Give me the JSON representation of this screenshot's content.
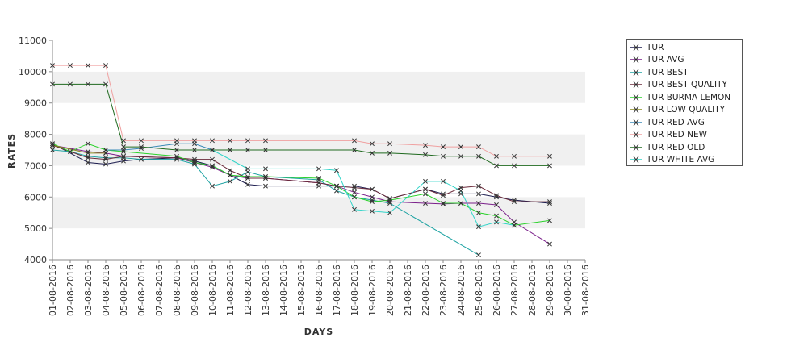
{
  "chart_data": {
    "type": "line",
    "xlabel": "DAYS",
    "ylabel": "RATES",
    "ylim": [
      4000,
      11000
    ],
    "yticks": [
      4000,
      5000,
      6000,
      7000,
      8000,
      9000,
      10000,
      11000
    ],
    "x": [
      "01-08-2016",
      "02-08-2016",
      "03-08-2016",
      "04-08-2016",
      "05-08-2016",
      "06-08-2016",
      "07-08-2016",
      "08-08-2016",
      "09-08-2016",
      "10-08-2016",
      "11-08-2016",
      "12-08-2016",
      "13-08-2016",
      "14-08-2016",
      "15-08-2016",
      "16-08-2016",
      "17-08-2016",
      "18-08-2016",
      "19-08-2016",
      "20-08-2016",
      "21-08-2016",
      "22-08-2016",
      "23-08-2016",
      "24-08-2016",
      "25-08-2016",
      "26-08-2016",
      "27-08-2016",
      "28-08-2016",
      "29-08-2016",
      "30-08-2016",
      "31-08-2016"
    ],
    "grid": "horizontal alternating bands",
    "legend_position": "right",
    "series": [
      {
        "name": "TUR",
        "color": "#1a1a4d",
        "points": [
          [
            "01-08-2016",
            7700
          ],
          [
            "03-08-2016",
            7100
          ],
          [
            "04-08-2016",
            7050
          ],
          [
            "05-08-2016",
            7150
          ],
          [
            "06-08-2016",
            7200
          ],
          [
            "08-08-2016",
            7250
          ],
          [
            "09-08-2016",
            7150
          ],
          [
            "10-08-2016",
            7000
          ],
          [
            "11-08-2016",
            6700
          ],
          [
            "12-08-2016",
            6400
          ],
          [
            "13-08-2016",
            6350
          ],
          [
            "16-08-2016",
            6350
          ],
          [
            "17-08-2016",
            6350
          ],
          [
            "18-08-2016",
            6350
          ],
          [
            "19-08-2016",
            6250
          ],
          [
            "20-08-2016",
            5950
          ],
          [
            "22-08-2016",
            6250
          ],
          [
            "23-08-2016",
            6100
          ],
          [
            "24-08-2016",
            6100
          ],
          [
            "25-08-2016",
            6100
          ],
          [
            "26-08-2016",
            6000
          ],
          [
            "27-08-2016",
            5900
          ],
          [
            "29-08-2016",
            5800
          ]
        ]
      },
      {
        "name": "TUR AVG",
        "color": "#7a1f8a",
        "points": [
          [
            "01-08-2016",
            7650
          ],
          [
            "03-08-2016",
            7450
          ],
          [
            "04-08-2016",
            7400
          ],
          [
            "05-08-2016",
            7300
          ],
          [
            "08-08-2016",
            7250
          ],
          [
            "09-08-2016",
            7100
          ],
          [
            "10-08-2016",
            6950
          ],
          [
            "11-08-2016",
            6700
          ],
          [
            "12-08-2016",
            6600
          ],
          [
            "13-08-2016",
            6600
          ],
          [
            "16-08-2016",
            6450
          ],
          [
            "17-08-2016",
            6350
          ],
          [
            "18-08-2016",
            6150
          ],
          [
            "19-08-2016",
            6000
          ],
          [
            "20-08-2016",
            5850
          ],
          [
            "22-08-2016",
            5800
          ],
          [
            "23-08-2016",
            5780
          ],
          [
            "24-08-2016",
            5800
          ],
          [
            "25-08-2016",
            5800
          ],
          [
            "26-08-2016",
            5750
          ],
          [
            "27-08-2016",
            5200
          ],
          [
            "29-08-2016",
            4500
          ]
        ]
      },
      {
        "name": "TUR BEST",
        "color": "#1fa3a3",
        "points": [
          [
            "01-08-2016",
            7500
          ],
          [
            "02-08-2016",
            7450
          ],
          [
            "03-08-2016",
            7300
          ],
          [
            "04-08-2016",
            7250
          ],
          [
            "05-08-2016",
            7250
          ],
          [
            "06-08-2016",
            7200
          ],
          [
            "08-08-2016",
            7200
          ],
          [
            "09-08-2016",
            7050
          ],
          [
            "10-08-2016",
            6350
          ],
          [
            "11-08-2016",
            6500
          ],
          [
            "12-08-2016",
            6800
          ],
          [
            "13-08-2016",
            6650
          ],
          [
            "16-08-2016",
            6550
          ],
          [
            "17-08-2016",
            6200
          ],
          [
            "18-08-2016",
            6000
          ],
          [
            "19-08-2016",
            5900
          ],
          [
            "20-08-2016",
            5800
          ],
          [
            "25-08-2016",
            4150
          ]
        ]
      },
      {
        "name": "TUR BEST QUALITY",
        "color": "#6a2a3a",
        "points": [
          [
            "01-08-2016",
            7650
          ],
          [
            "03-08-2016",
            7250
          ],
          [
            "04-08-2016",
            7200
          ],
          [
            "05-08-2016",
            7300
          ],
          [
            "08-08-2016",
            7250
          ],
          [
            "09-08-2016",
            7200
          ],
          [
            "10-08-2016",
            7200
          ],
          [
            "11-08-2016",
            6850
          ],
          [
            "12-08-2016",
            6600
          ],
          [
            "13-08-2016",
            6600
          ],
          [
            "16-08-2016",
            6450
          ],
          [
            "17-08-2016",
            6350
          ],
          [
            "18-08-2016",
            6300
          ],
          [
            "19-08-2016",
            6250
          ],
          [
            "20-08-2016",
            5950
          ],
          [
            "22-08-2016",
            6250
          ],
          [
            "23-08-2016",
            6050
          ],
          [
            "24-08-2016",
            6300
          ],
          [
            "25-08-2016",
            6350
          ],
          [
            "26-08-2016",
            6050
          ],
          [
            "27-08-2016",
            5850
          ],
          [
            "29-08-2016",
            5850
          ]
        ]
      },
      {
        "name": "TUR BURMA LEMON",
        "color": "#2bd12b",
        "points": [
          [
            "01-08-2016",
            7700
          ],
          [
            "02-08-2016",
            7450
          ],
          [
            "03-08-2016",
            7700
          ],
          [
            "04-08-2016",
            7500
          ],
          [
            "05-08-2016",
            7450
          ],
          [
            "08-08-2016",
            7300
          ],
          [
            "09-08-2016",
            7100
          ],
          [
            "10-08-2016",
            7000
          ],
          [
            "11-08-2016",
            6700
          ],
          [
            "12-08-2016",
            6650
          ],
          [
            "13-08-2016",
            6650
          ],
          [
            "16-08-2016",
            6600
          ],
          [
            "17-08-2016",
            6350
          ],
          [
            "18-08-2016",
            6000
          ],
          [
            "19-08-2016",
            5850
          ],
          [
            "20-08-2016",
            5900
          ],
          [
            "22-08-2016",
            6100
          ],
          [
            "23-08-2016",
            5800
          ],
          [
            "24-08-2016",
            5800
          ],
          [
            "25-08-2016",
            5500
          ],
          [
            "26-08-2016",
            5400
          ],
          [
            "27-08-2016",
            5100
          ],
          [
            "29-08-2016",
            5250
          ]
        ]
      },
      {
        "name": "TUR LOW QUALITY",
        "color": "#8a8a20",
        "points": [
          [
            "01-08-2016",
            7650
          ],
          [
            "03-08-2016",
            7400
          ],
          [
            "04-08-2016",
            7400
          ]
        ]
      },
      {
        "name": "TUR RED AVG",
        "color": "#3a8ab8",
        "points": [
          [
            "04-08-2016",
            7500
          ],
          [
            "05-08-2016",
            7500
          ],
          [
            "06-08-2016",
            7550
          ],
          [
            "08-08-2016",
            7700
          ],
          [
            "09-08-2016",
            7700
          ],
          [
            "10-08-2016",
            7500
          ]
        ]
      },
      {
        "name": "TUR RED NEW",
        "color": "#f0a0a0",
        "points": [
          [
            "01-08-2016",
            10200
          ],
          [
            "02-08-2016",
            10200
          ],
          [
            "03-08-2016",
            10200
          ],
          [
            "04-08-2016",
            10200
          ],
          [
            "05-08-2016",
            7800
          ],
          [
            "06-08-2016",
            7800
          ],
          [
            "08-08-2016",
            7800
          ],
          [
            "09-08-2016",
            7800
          ],
          [
            "10-08-2016",
            7800
          ],
          [
            "11-08-2016",
            7800
          ],
          [
            "12-08-2016",
            7800
          ],
          [
            "13-08-2016",
            7800
          ],
          [
            "18-08-2016",
            7800
          ],
          [
            "19-08-2016",
            7700
          ],
          [
            "20-08-2016",
            7700
          ],
          [
            "22-08-2016",
            7650
          ],
          [
            "23-08-2016",
            7600
          ],
          [
            "24-08-2016",
            7600
          ],
          [
            "25-08-2016",
            7600
          ],
          [
            "26-08-2016",
            7300
          ],
          [
            "27-08-2016",
            7300
          ],
          [
            "29-08-2016",
            7300
          ]
        ]
      },
      {
        "name": "TUR RED OLD",
        "color": "#1f6a1f",
        "points": [
          [
            "01-08-2016",
            9600
          ],
          [
            "02-08-2016",
            9600
          ],
          [
            "03-08-2016",
            9600
          ],
          [
            "04-08-2016",
            9600
          ],
          [
            "05-08-2016",
            7600
          ],
          [
            "06-08-2016",
            7600
          ],
          [
            "08-08-2016",
            7500
          ],
          [
            "09-08-2016",
            7500
          ],
          [
            "10-08-2016",
            7500
          ],
          [
            "11-08-2016",
            7500
          ],
          [
            "12-08-2016",
            7500
          ],
          [
            "13-08-2016",
            7500
          ],
          [
            "18-08-2016",
            7500
          ],
          [
            "19-08-2016",
            7400
          ],
          [
            "20-08-2016",
            7400
          ],
          [
            "22-08-2016",
            7350
          ],
          [
            "23-08-2016",
            7300
          ],
          [
            "24-08-2016",
            7300
          ],
          [
            "25-08-2016",
            7300
          ],
          [
            "26-08-2016",
            7000
          ],
          [
            "27-08-2016",
            7000
          ],
          [
            "29-08-2016",
            7000
          ]
        ]
      },
      {
        "name": "TUR WHITE AVG",
        "color": "#30d4c8",
        "points": [
          [
            "10-08-2016",
            7500
          ],
          [
            "12-08-2016",
            6900
          ],
          [
            "13-08-2016",
            6900
          ],
          [
            "16-08-2016",
            6900
          ],
          [
            "17-08-2016",
            6850
          ],
          [
            "18-08-2016",
            5600
          ],
          [
            "19-08-2016",
            5550
          ],
          [
            "20-08-2016",
            5500
          ],
          [
            "22-08-2016",
            6500
          ],
          [
            "23-08-2016",
            6500
          ],
          [
            "24-08-2016",
            6200
          ],
          [
            "25-08-2016",
            5050
          ],
          [
            "26-08-2016",
            5200
          ],
          [
            "27-08-2016",
            5100
          ]
        ]
      }
    ]
  }
}
